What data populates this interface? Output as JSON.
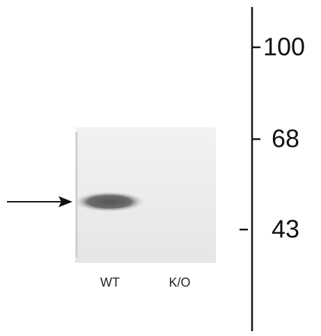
{
  "markers": [
    {
      "label": "100"
    },
    {
      "label": "68"
    },
    {
      "label": "43"
    }
  ],
  "lanes": [
    {
      "label": "WT"
    },
    {
      "label": "K/O"
    }
  ]
}
